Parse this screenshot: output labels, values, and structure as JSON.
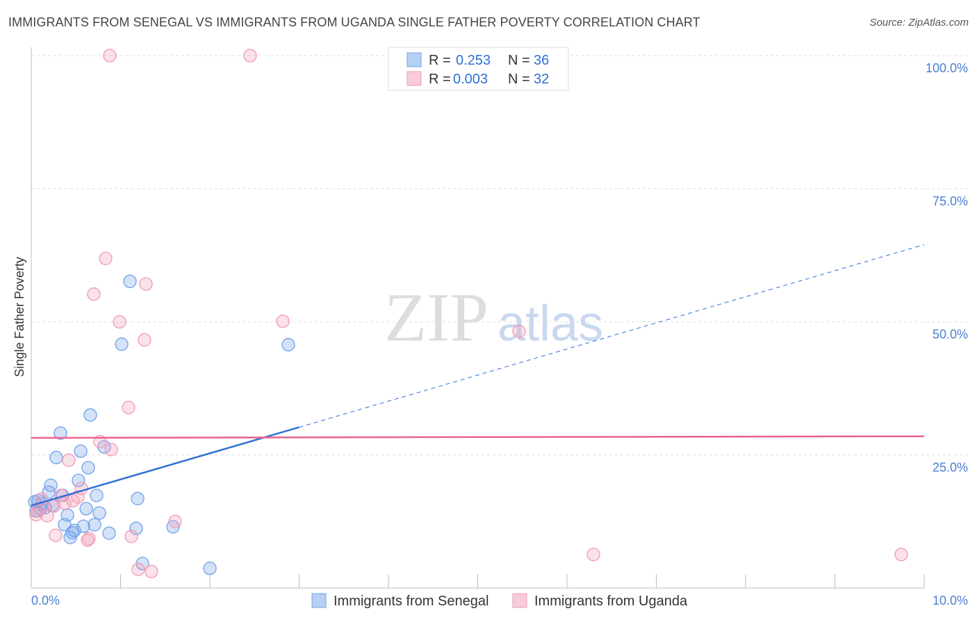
{
  "title": "IMMIGRANTS FROM SENEGAL VS IMMIGRANTS FROM UGANDA SINGLE FATHER POVERTY CORRELATION CHART",
  "source": "Source: ZipAtlas.com",
  "watermark": "ZIPatlas",
  "chart_data": {
    "type": "scatter",
    "title": "IMMIGRANTS FROM SENEGAL VS IMMIGRANTS FROM UGANDA SINGLE FATHER POVERTY CORRELATION CHART",
    "xlabel": "",
    "ylabel": "Single Father Poverty",
    "xlim": [
      0,
      10
    ],
    "ylim": [
      0,
      100
    ],
    "x_tick_labels": [
      "0.0%",
      "10.0%"
    ],
    "y_ticks": [
      25,
      50,
      75,
      100
    ],
    "y_tick_labels": [
      "25.0%",
      "50.0%",
      "75.0%",
      "100.0%"
    ],
    "grid": true,
    "legend_position": "top-center",
    "series": [
      {
        "name": "Immigrants from Senegal",
        "color": "#6fa0e8",
        "line_color": "#2f6fd6",
        "R": "0.253",
        "N": "36",
        "trend": {
          "intercept": 15.5,
          "slope": 4.9,
          "solid_until": 3.0
        },
        "points": [
          [
            1.105,
            57.6
          ],
          [
            1.012,
            45.8
          ],
          [
            2.879,
            45.7
          ],
          [
            0.661,
            32.5
          ],
          [
            0.327,
            29.1
          ],
          [
            0.817,
            26.5
          ],
          [
            0.553,
            25.7
          ],
          [
            0.28,
            24.5
          ],
          [
            0.638,
            22.6
          ],
          [
            0.218,
            19.3
          ],
          [
            0.529,
            20.2
          ],
          [
            0.195,
            18.0
          ],
          [
            0.732,
            17.4
          ],
          [
            1.191,
            16.8
          ],
          [
            0.078,
            16.4
          ],
          [
            0.117,
            15.8
          ],
          [
            0.35,
            17.4
          ],
          [
            0.405,
            13.7
          ],
          [
            0.615,
            14.9
          ],
          [
            0.763,
            14.1
          ],
          [
            0.374,
            11.9
          ],
          [
            0.584,
            11.6
          ],
          [
            0.708,
            11.9
          ],
          [
            1.175,
            11.2
          ],
          [
            1.588,
            11.5
          ],
          [
            0.482,
            10.8
          ],
          [
            0.459,
            10.4
          ],
          [
            0.436,
            9.5
          ],
          [
            0.872,
            10.3
          ],
          [
            1.245,
            4.6
          ],
          [
            2.0,
            3.7
          ],
          [
            0.039,
            16.2
          ],
          [
            0.101,
            14.9
          ],
          [
            0.156,
            15.1
          ],
          [
            0.054,
            14.5
          ],
          [
            0.233,
            15.5
          ]
        ]
      },
      {
        "name": "Immigrants from Uganda",
        "color": "#f29ab5",
        "line_color": "#e8638f",
        "R": "0.003",
        "N": "32",
        "trend": {
          "intercept": 28.2,
          "slope": 0.03,
          "solid_until": 10
        },
        "points": [
          [
            0.879,
            100
          ],
          [
            2.451,
            100
          ],
          [
            0.833,
            61.9
          ],
          [
            1.284,
            57.1
          ],
          [
            0.7,
            55.2
          ],
          [
            0.988,
            50.0
          ],
          [
            2.817,
            50.1
          ],
          [
            1.268,
            46.6
          ],
          [
            5.463,
            48.2
          ],
          [
            1.089,
            33.9
          ],
          [
            0.77,
            27.5
          ],
          [
            0.895,
            26.0
          ],
          [
            0.42,
            24.0
          ],
          [
            0.56,
            18.7
          ],
          [
            0.521,
            17.1
          ],
          [
            0.467,
            16.4
          ],
          [
            0.335,
            17.4
          ],
          [
            0.257,
            15.4
          ],
          [
            0.117,
            16.7
          ],
          [
            0.078,
            14.5
          ],
          [
            0.179,
            13.6
          ],
          [
            0.054,
            13.8
          ],
          [
            0.374,
            15.9
          ],
          [
            0.272,
            9.9
          ],
          [
            0.63,
            9.0
          ],
          [
            0.646,
            9.3
          ],
          [
            1.121,
            9.7
          ],
          [
            1.611,
            12.5
          ],
          [
            1.198,
            3.5
          ],
          [
            1.346,
            3.1
          ],
          [
            6.296,
            6.3
          ],
          [
            9.743,
            6.3
          ]
        ]
      }
    ]
  }
}
